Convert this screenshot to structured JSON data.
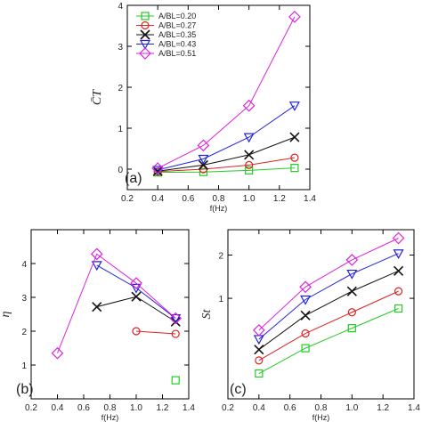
{
  "chart_data": [
    {
      "panel_label": "(a)",
      "type": "line",
      "xlabel": "f(Hz)",
      "ylabel": "C̄T",
      "xlim": [
        0.2,
        1.4
      ],
      "ylim": [
        -0.5,
        4
      ],
      "xticks": [
        0.2,
        0.4,
        0.6,
        0.8,
        1.0,
        1.2,
        1.4
      ],
      "xticklabels": [
        "0.2",
        "0.4",
        "0.6",
        "0.8",
        "1.0",
        "1.2",
        "1.4"
      ],
      "yticks": [
        0,
        1,
        2,
        3,
        4
      ],
      "yticklabels": [
        "0",
        "1",
        "2",
        "3",
        "4"
      ],
      "legend_position": "top-left",
      "series": [
        {
          "name": "A/BL=0.20",
          "color": "#22cc22",
          "marker": "square",
          "x": [
            0.4,
            0.7,
            1.0,
            1.3
          ],
          "y": [
            -0.08,
            -0.07,
            -0.03,
            0.03
          ]
        },
        {
          "name": "A/BL=0.27",
          "color": "#dd2222",
          "marker": "circle",
          "x": [
            0.4,
            0.7,
            1.0,
            1.3
          ],
          "y": [
            -0.06,
            0.0,
            0.1,
            0.28
          ]
        },
        {
          "name": "A/BL=0.35",
          "color": "#111111",
          "marker": "x",
          "x": [
            0.4,
            0.7,
            1.0,
            1.3
          ],
          "y": [
            -0.05,
            0.1,
            0.35,
            0.78
          ]
        },
        {
          "name": "A/BL=0.43",
          "color": "#2222dd",
          "marker": "triangle",
          "x": [
            0.4,
            0.7,
            1.0,
            1.3
          ],
          "y": [
            -0.02,
            0.25,
            0.78,
            1.55
          ]
        },
        {
          "name": "A/BL=0.51",
          "color": "#dd22dd",
          "marker": "diamond",
          "x": [
            0.4,
            0.7,
            1.0,
            1.3
          ],
          "y": [
            0.02,
            0.58,
            1.55,
            3.72
          ]
        }
      ]
    },
    {
      "panel_label": "(b)",
      "type": "line",
      "xlabel": "f(Hz)",
      "ylabel": "η",
      "xlim": [
        0.2,
        1.4
      ],
      "ylim": [
        0,
        5
      ],
      "xticks": [
        0.2,
        0.4,
        0.6,
        0.8,
        1.0,
        1.2,
        1.4
      ],
      "xticklabels": [
        "0.2",
        "0.4",
        "0.6",
        "0.8",
        "1.0",
        "1.2",
        "1.4"
      ],
      "yticks": [
        1,
        2,
        3,
        4
      ],
      "yticklabels": [
        "1",
        "2",
        "3",
        "4"
      ],
      "series": [
        {
          "color": "#22cc22",
          "marker": "square",
          "x": [
            1.3
          ],
          "y": [
            0.55
          ]
        },
        {
          "color": "#dd2222",
          "marker": "circle",
          "x": [
            1.0,
            1.3
          ],
          "y": [
            2.0,
            1.92
          ]
        },
        {
          "color": "#111111",
          "marker": "x",
          "x": [
            0.7,
            1.0,
            1.3
          ],
          "y": [
            2.72,
            3.02,
            2.28
          ]
        },
        {
          "color": "#2222dd",
          "marker": "triangle",
          "x": [
            0.7,
            1.0,
            1.3
          ],
          "y": [
            3.95,
            3.28,
            2.38
          ]
        },
        {
          "color": "#dd22dd",
          "marker": "diamond",
          "x": [
            0.4,
            0.7,
            1.0,
            1.3
          ],
          "y": [
            1.35,
            4.28,
            3.42,
            2.38
          ]
        }
      ]
    },
    {
      "panel_label": "(c)",
      "type": "line",
      "xlabel": "f(Hz)",
      "ylabel": "St",
      "xlim": [
        0.2,
        1.4
      ],
      "ylim": [
        0.2,
        3.0
      ],
      "yscale": "log",
      "xticks": [
        0.2,
        0.4,
        0.6,
        0.8,
        1.0,
        1.2,
        1.4
      ],
      "xticklabels": [
        "0.2",
        "0.4",
        "0.6",
        "0.8",
        "1.0",
        "1.2",
        "1.4"
      ],
      "yticks": [
        1,
        2
      ],
      "yticklabels": [
        "1",
        "2"
      ],
      "series": [
        {
          "color": "#22cc22",
          "marker": "square",
          "x": [
            0.4,
            0.7,
            1.0,
            1.3
          ],
          "y": [
            0.3,
            0.45,
            0.62,
            0.85
          ]
        },
        {
          "color": "#dd2222",
          "marker": "circle",
          "x": [
            0.4,
            0.7,
            1.0,
            1.3
          ],
          "y": [
            0.37,
            0.57,
            0.8,
            1.12
          ]
        },
        {
          "color": "#111111",
          "marker": "x",
          "x": [
            0.4,
            0.7,
            1.0,
            1.3
          ],
          "y": [
            0.44,
            0.76,
            1.12,
            1.55
          ]
        },
        {
          "color": "#2222dd",
          "marker": "triangle",
          "x": [
            0.4,
            0.7,
            1.0,
            1.3
          ],
          "y": [
            0.52,
            0.98,
            1.48,
            2.05
          ]
        },
        {
          "color": "#dd22dd",
          "marker": "diamond",
          "x": [
            0.4,
            0.7,
            1.0,
            1.3
          ],
          "y": [
            0.6,
            1.2,
            1.85,
            2.62
          ]
        }
      ]
    }
  ]
}
